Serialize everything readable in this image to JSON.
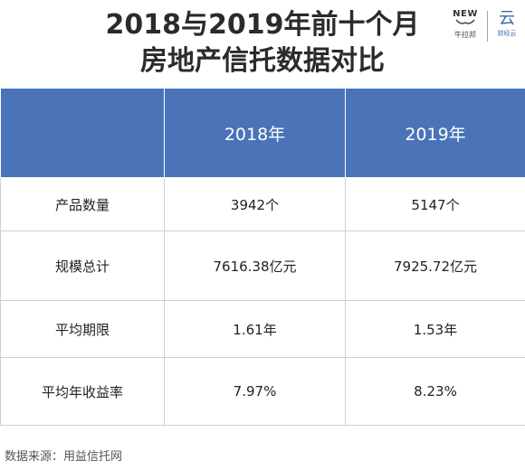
{
  "title_line1": "2018与2019年前十个月",
  "title_line2": "房地产信托数据对比",
  "logo": {
    "left_top": "NEW",
    "left_bottom": "牛拉邦",
    "right_glyph": "云",
    "right_sub": "财经云"
  },
  "table": {
    "headers": [
      "",
      "2018年",
      "2019年"
    ],
    "rows": [
      {
        "label": "产品数量",
        "v2018": "3942个",
        "v2019": "5147个"
      },
      {
        "label": "规模总计",
        "v2018": "7616.38亿元",
        "v2019": "7925.72亿元"
      },
      {
        "label": "平均期限",
        "v2018": "1.61年",
        "v2019": "1.53年"
      },
      {
        "label": "平均年收益率",
        "v2018": "7.97%",
        "v2019": "8.23%"
      }
    ]
  },
  "source": "数据来源：用益信托网",
  "colors": {
    "header_bg": "#4a73b8",
    "header_text": "#ffffff",
    "title_text": "#2b2b2b",
    "logo_accent": "#3a69b0"
  }
}
